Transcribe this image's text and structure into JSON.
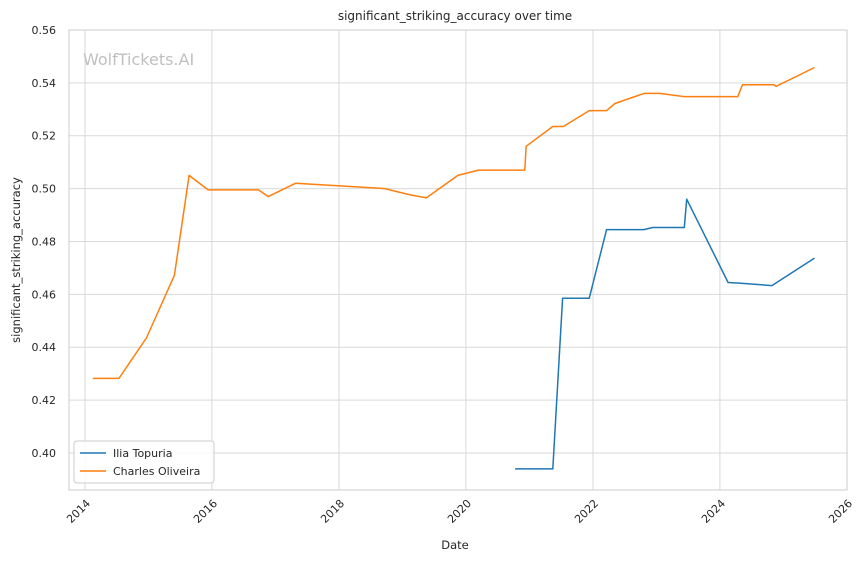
{
  "chart_data": {
    "type": "line",
    "title": "significant_striking_accuracy over time",
    "xlabel": "Date",
    "ylabel": "significant_striking_accuracy",
    "watermark": "WolfTickets.AI",
    "x_type": "date",
    "xlim": [
      "2013-10-01",
      "2026-01-01"
    ],
    "ylim": [
      0.386,
      0.56
    ],
    "x_ticks": [
      "2014",
      "2016",
      "2018",
      "2020",
      "2022",
      "2024",
      "2026"
    ],
    "y_ticks": [
      "0.40",
      "0.42",
      "0.44",
      "0.46",
      "0.48",
      "0.50",
      "0.52",
      "0.54",
      "0.56"
    ],
    "grid": true,
    "legend_position": "lower-left",
    "series": [
      {
        "name": "Ilia Topuria",
        "color": "#1f77b4",
        "points": [
          [
            "2020-10-10",
            0.394
          ],
          [
            "2021-05-15",
            0.394
          ],
          [
            "2021-07-10",
            0.4585
          ],
          [
            "2021-12-10",
            0.4585
          ],
          [
            "2022-03-20",
            0.4845
          ],
          [
            "2022-10-22",
            0.4845
          ],
          [
            "2022-12-10",
            0.4853
          ],
          [
            "2023-06-10",
            0.4853
          ],
          [
            "2023-06-24",
            0.496
          ],
          [
            "2024-02-17",
            0.4645
          ],
          [
            "2024-04-10",
            0.4643
          ],
          [
            "2024-10-26",
            0.4633
          ],
          [
            "2025-06-28",
            0.4737
          ]
        ]
      },
      {
        "name": "Charles Oliveira",
        "color": "#ff7f0e",
        "points": [
          [
            "2014-02-15",
            0.4282
          ],
          [
            "2014-07-15",
            0.4282
          ],
          [
            "2014-12-20",
            0.4435
          ],
          [
            "2015-05-30",
            0.4672
          ],
          [
            "2015-08-23",
            0.505
          ],
          [
            "2015-12-10",
            0.4995
          ],
          [
            "2016-09-25",
            0.4995
          ],
          [
            "2016-11-20",
            0.497
          ],
          [
            "2017-04-25",
            0.502
          ],
          [
            "2018-09-22",
            0.5
          ],
          [
            "2019-02-02",
            0.4978
          ],
          [
            "2019-05-18",
            0.4965
          ],
          [
            "2019-11-16",
            0.505
          ],
          [
            "2020-03-14",
            0.507
          ],
          [
            "2020-12-05",
            0.507
          ],
          [
            "2020-12-12",
            0.516
          ],
          [
            "2021-05-15",
            0.5235
          ],
          [
            "2021-07-15",
            0.5235
          ],
          [
            "2021-12-11",
            0.5295
          ],
          [
            "2022-03-20",
            0.5295
          ],
          [
            "2022-05-07",
            0.5322
          ],
          [
            "2022-10-22",
            0.536
          ],
          [
            "2023-01-20",
            0.536
          ],
          [
            "2023-06-10",
            0.5348
          ],
          [
            "2024-04-13",
            0.5348
          ],
          [
            "2024-05-10",
            0.5393
          ],
          [
            "2024-11-05",
            0.5393
          ],
          [
            "2024-11-20",
            0.5387
          ],
          [
            "2025-06-28",
            0.5458
          ]
        ]
      }
    ]
  }
}
